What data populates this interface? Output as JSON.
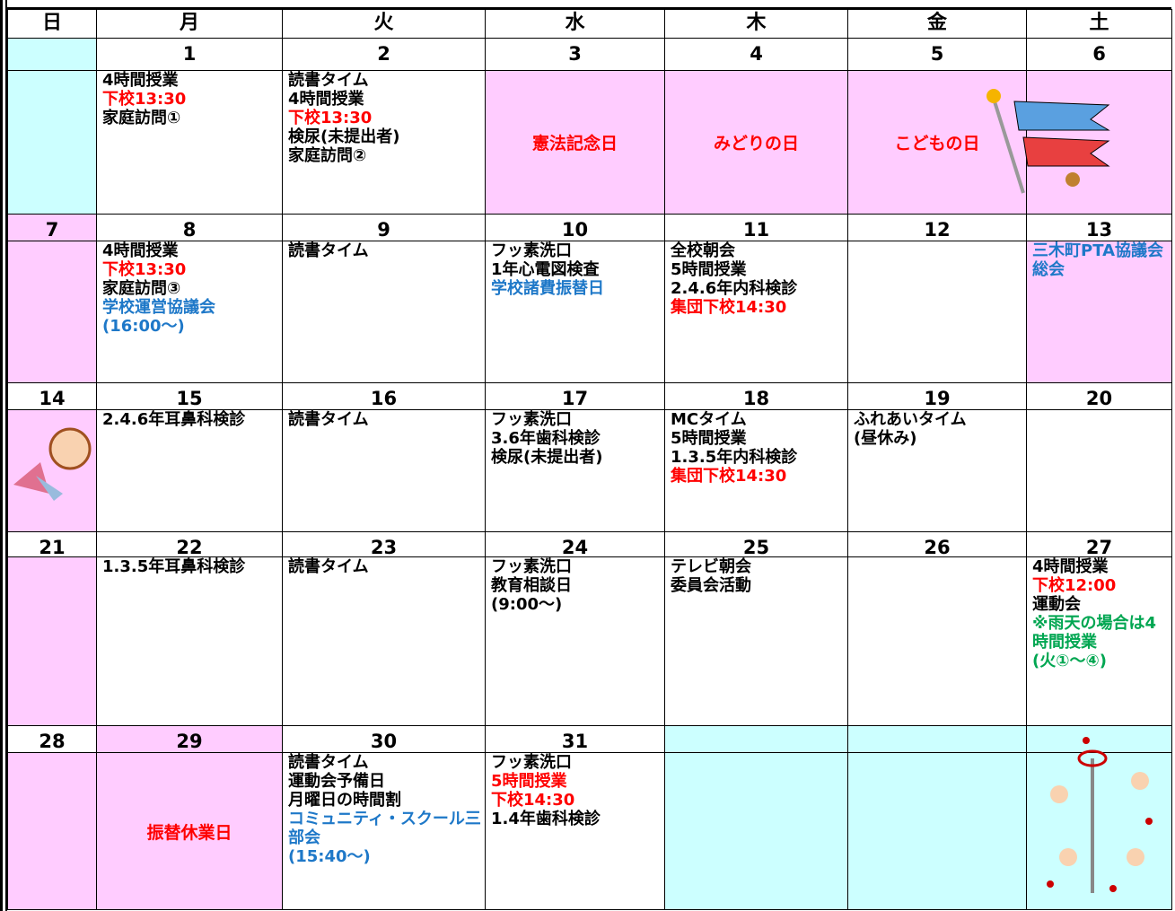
{
  "header": {
    "weekdays": [
      "日",
      "月",
      "火",
      "水",
      "木",
      "金",
      "土"
    ]
  },
  "weeks": [
    {
      "days": [
        {
          "date_bg": "#ccffff",
          "bg": "#ccffff"
        },
        {
          "date": "1",
          "lines": [
            {
              "text": "4時間授業"
            },
            {
              "text": "下校13:30",
              "color": "#ff0000"
            },
            {
              "text": "家庭訪問①"
            }
          ]
        },
        {
          "date": "2",
          "lines": [
            {
              "text": "読書タイム"
            },
            {
              "text": "4時間授業"
            },
            {
              "text": "下校13:30",
              "color": "#ff0000"
            },
            {
              "text": "検尿(未提出者)"
            },
            {
              "text": "家庭訪問②"
            }
          ]
        },
        {
          "date": "3",
          "bg": "#ffccff",
          "holiday": "憲法記念日"
        },
        {
          "date": "4",
          "bg": "#ffccff",
          "holiday": "みどりの日"
        },
        {
          "date": "5",
          "bg": "#ffccff",
          "holiday": "こどもの日"
        },
        {
          "date": "6",
          "bg": "#ffccff"
        }
      ]
    },
    {
      "days": [
        {
          "date": "7",
          "date_bg": "#ffccff",
          "bg": "#ffccff"
        },
        {
          "date": "8",
          "lines": [
            {
              "text": "4時間授業"
            },
            {
              "text": "下校13:30",
              "color": "#ff0000"
            },
            {
              "text": "家庭訪問③"
            },
            {
              "text": "学校運営協議会",
              "color": "#1e78c8"
            },
            {
              "text": "(16:00～)",
              "color": "#1e78c8"
            }
          ]
        },
        {
          "date": "9",
          "lines": [
            {
              "text": "読書タイム"
            }
          ]
        },
        {
          "date": "10",
          "lines": [
            {
              "text": "フッ素洗口"
            },
            {
              "text": "1年心電図検査"
            },
            {
              "text": "学校諸費振替日",
              "color": "#1e78c8"
            }
          ]
        },
        {
          "date": "11",
          "lines": [
            {
              "text": "全校朝会"
            },
            {
              "text": "5時間授業"
            },
            {
              "text": "2.4.6年内科検診"
            },
            {
              "text": "集団下校14:30",
              "color": "#ff0000"
            }
          ]
        },
        {
          "date": "12"
        },
        {
          "date": "13",
          "bg": "#ffccff",
          "lines": [
            {
              "text": "三木町PTA協議会総会",
              "color": "#1e78c8"
            }
          ]
        }
      ]
    },
    {
      "days": [
        {
          "date": "14",
          "bg": "#ffccff"
        },
        {
          "date": "15",
          "lines": [
            {
              "text": "2.4.6年耳鼻科検診"
            }
          ]
        },
        {
          "date": "16",
          "lines": [
            {
              "text": "読書タイム"
            }
          ]
        },
        {
          "date": "17",
          "lines": [
            {
              "text": "フッ素洗口"
            },
            {
              "text": "3.6年歯科検診"
            },
            {
              "text": "検尿(未提出者)"
            }
          ]
        },
        {
          "date": "18",
          "lines": [
            {
              "text": "MCタイム"
            },
            {
              "text": "5時間授業"
            },
            {
              "text": "1.3.5年内科検診"
            },
            {
              "text": "集団下校14:30",
              "color": "#ff0000"
            }
          ]
        },
        {
          "date": "19",
          "lines": [
            {
              "text": "ふれあいタイム"
            },
            {
              "text": "(昼休み)"
            }
          ]
        },
        {
          "date": "20"
        }
      ]
    },
    {
      "days": [
        {
          "date": "21",
          "bg": "#ffccff"
        },
        {
          "date": "22",
          "lines": [
            {
              "text": "1.3.5年耳鼻科検診"
            }
          ]
        },
        {
          "date": "23",
          "lines": [
            {
              "text": "読書タイム"
            }
          ]
        },
        {
          "date": "24",
          "lines": [
            {
              "text": "フッ素洗口"
            },
            {
              "text": "教育相談日"
            },
            {
              "text": "(9:00～)"
            }
          ]
        },
        {
          "date": "25",
          "lines": [
            {
              "text": "テレビ朝会"
            },
            {
              "text": "委員会活動"
            }
          ]
        },
        {
          "date": "26"
        },
        {
          "date": "27",
          "lines": [
            {
              "text": "4時間授業"
            },
            {
              "text": "下校12:00",
              "color": "#ff0000"
            },
            {
              "text": "運動会"
            },
            {
              "text": "※雨天の場合は4時間授業",
              "color": "#00a651"
            },
            {
              "text": "(火①～④)",
              "color": "#00a651"
            }
          ]
        }
      ]
    },
    {
      "days": [
        {
          "date": "28",
          "bg": "#ffccff"
        },
        {
          "date": "29",
          "date_bg": "#ffccff",
          "bg": "#ffccff",
          "holiday": "振替休業日"
        },
        {
          "date": "30",
          "lines": [
            {
              "text": "読書タイム"
            },
            {
              "text": "運動会予備日"
            },
            {
              "text": "月曜日の時間割"
            },
            {
              "text": "コミュニティ・スクール三部会",
              "color": "#1e78c8"
            },
            {
              "text": "(15:40～)",
              "color": "#1e78c8"
            }
          ]
        },
        {
          "date": "31",
          "lines": [
            {
              "text": "フッ素洗口"
            },
            {
              "text": "5時間授業",
              "color": "#ff0000"
            },
            {
              "text": "下校14:30",
              "color": "#ff0000"
            },
            {
              "text": "1.4年歯科検診"
            }
          ]
        },
        {
          "date_bg": "#ccffff",
          "bg": "#ccffff"
        },
        {
          "date_bg": "#ccffff",
          "bg": "#ccffff"
        },
        {
          "date_bg": "#ccffff",
          "bg": "#ccffff"
        }
      ]
    }
  ]
}
